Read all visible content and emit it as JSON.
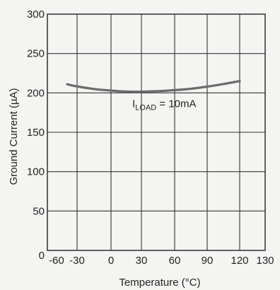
{
  "chart_data": {
    "type": "line",
    "xlabel": "Temperature (°C)",
    "ylabel": "Ground Current (µA)",
    "xlim": [
      -60,
      130
    ],
    "ylim": [
      0,
      300
    ],
    "x_ticks": [
      -60,
      -30,
      0,
      30,
      60,
      90,
      120,
      130
    ],
    "x_tick_labels": [
      "-60",
      "-30",
      "0",
      "30",
      "60",
      "90",
      "120",
      "130"
    ],
    "y_ticks": [
      0,
      50,
      100,
      150,
      200,
      250,
      300
    ],
    "y_tick_labels": [
      "0",
      "50",
      "100",
      "150",
      "200",
      "250",
      "300"
    ],
    "grid": true,
    "series": [
      {
        "x": [
          -40,
          -30,
          -20,
          -10,
          0,
          10,
          20,
          30,
          40,
          50,
          60,
          70,
          80,
          90,
          100,
          110,
          120
        ],
        "y": [
          211,
          208,
          206,
          204,
          203,
          202,
          201.5,
          201.5,
          202,
          202.5,
          203.5,
          204.5,
          206,
          208,
          210,
          212.5,
          215
        ],
        "color": "#6a6a6a"
      }
    ],
    "annotations": [
      {
        "main": "I",
        "sub": "LOAD",
        "rest": " = 10mA",
        "x": 21,
        "y": 182
      }
    ]
  }
}
